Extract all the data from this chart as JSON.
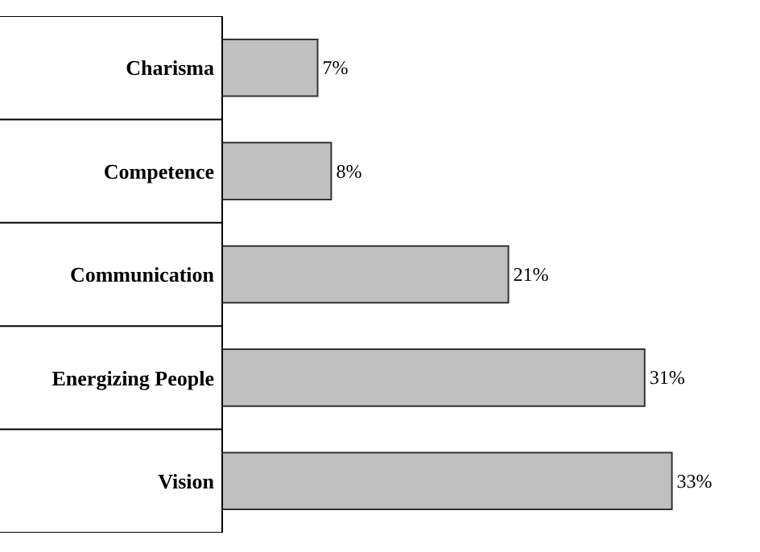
{
  "chart_data": {
    "type": "bar",
    "orientation": "horizontal",
    "categories": [
      "Charisma",
      "Competence",
      "Communication",
      "Energizing People",
      "Vision"
    ],
    "values": [
      7,
      8,
      21,
      31,
      33
    ],
    "value_labels": [
      "7%",
      "8%",
      "21%",
      "31%",
      "33%"
    ],
    "color": "#c0c0c0",
    "grid": false,
    "legend": false
  }
}
